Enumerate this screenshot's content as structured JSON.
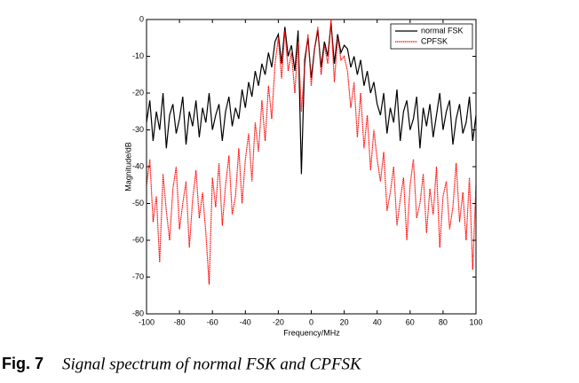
{
  "chart_data": {
    "type": "line",
    "xlabel": "Frequency/MHz",
    "ylabel": "Magnitude/dB",
    "x": [
      -100,
      -98,
      -96,
      -94,
      -92,
      -90,
      -88,
      -86,
      -84,
      -82,
      -80,
      -78,
      -76,
      -74,
      -72,
      -70,
      -68,
      -66,
      -64,
      -62,
      -60,
      -58,
      -56,
      -54,
      -52,
      -50,
      -48,
      -46,
      -44,
      -42,
      -40,
      -38,
      -36,
      -34,
      -32,
      -30,
      -28,
      -26,
      -24,
      -22,
      -20,
      -18,
      -16,
      -14,
      -12,
      -10,
      -8,
      -6,
      -4,
      -2,
      0,
      2,
      4,
      6,
      8,
      10,
      12,
      14,
      16,
      18,
      20,
      22,
      24,
      26,
      28,
      30,
      32,
      34,
      36,
      38,
      40,
      42,
      44,
      46,
      48,
      50,
      52,
      54,
      56,
      58,
      60,
      62,
      64,
      66,
      68,
      70,
      72,
      74,
      76,
      78,
      80,
      82,
      84,
      86,
      88,
      90,
      92,
      94,
      96,
      98,
      100
    ],
    "series": [
      {
        "name": "normal FSK",
        "color": "#000000",
        "linestyle": "solid",
        "values": [
          -28,
          -22,
          -33,
          -25,
          -30,
          -20,
          -35,
          -26,
          -23,
          -31,
          -27,
          -21,
          -34,
          -25,
          -29,
          -22,
          -32,
          -24,
          -28,
          -20,
          -30,
          -26,
          -23,
          -33,
          -25,
          -21,
          -29,
          -24,
          -27,
          -19,
          -24,
          -17,
          -21,
          -14,
          -18,
          -12,
          -15,
          -9,
          -13,
          -6,
          -4,
          -12,
          -2,
          -10,
          -7,
          -14,
          -3,
          -42,
          -11,
          -5,
          -16,
          -8,
          -3,
          -13,
          -6,
          -10,
          -1,
          -12,
          -4,
          -9,
          -7,
          -8,
          -13,
          -10,
          -15,
          -11,
          -18,
          -14,
          -20,
          -17,
          -23,
          -26,
          -20,
          -31,
          -24,
          -28,
          -19,
          -33,
          -25,
          -22,
          -30,
          -27,
          -21,
          -35,
          -24,
          -29,
          -23,
          -32,
          -26,
          -20,
          -30,
          -25,
          -22,
          -34,
          -27,
          -23,
          -31,
          -28,
          -21,
          -33,
          -26
        ]
      },
      {
        "name": "CPFSK",
        "color": "#ff0000",
        "linestyle": "dotted",
        "values": [
          -45,
          -38,
          -55,
          -48,
          -66,
          -42,
          -52,
          -60,
          -46,
          -40,
          -57,
          -50,
          -44,
          -62,
          -49,
          -41,
          -54,
          -47,
          -58,
          -72,
          -43,
          -51,
          -39,
          -56,
          -45,
          -37,
          -53,
          -48,
          -35,
          -50,
          -38,
          -31,
          -44,
          -28,
          -36,
          -22,
          -33,
          -18,
          -27,
          -12,
          -5,
          -16,
          -3,
          -14,
          -9,
          -20,
          -6,
          -25,
          -13,
          -4,
          -18,
          -8,
          -2,
          -15,
          -7,
          -12,
          0,
          -17,
          -5,
          -11,
          -10,
          -14,
          -24,
          -17,
          -32,
          -20,
          -35,
          -26,
          -41,
          -30,
          -38,
          -44,
          -36,
          -52,
          -47,
          -40,
          -56,
          -49,
          -43,
          -60,
          -45,
          -38,
          -54,
          -50,
          -42,
          -58,
          -46,
          -53,
          -40,
          -62,
          -48,
          -44,
          -57,
          -51,
          -39,
          -55,
          -47,
          -60,
          -43,
          -68,
          -45
        ]
      }
    ],
    "xlim": [
      -100,
      100
    ],
    "xticks": [
      -100,
      -80,
      -60,
      -40,
      -20,
      0,
      20,
      40,
      60,
      80,
      100
    ],
    "ylim": [
      -80,
      0
    ],
    "yticks": [
      0,
      -10,
      -20,
      -30,
      -40,
      -50,
      -60,
      -70,
      -80
    ],
    "legend": "upper right"
  },
  "caption": {
    "label": "Fig. 7",
    "text": "Signal spectrum of normal FSK and CPFSK"
  }
}
